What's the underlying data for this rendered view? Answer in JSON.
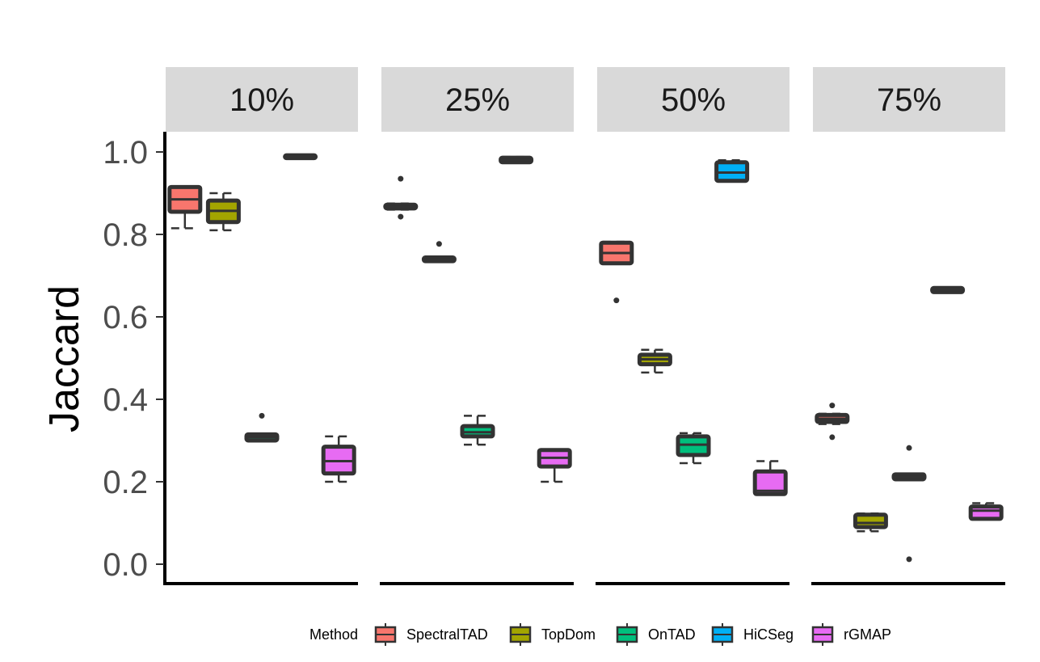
{
  "chart_data": {
    "type": "boxplot",
    "ylabel": "Jaccard",
    "xlabel": "",
    "ylim": [
      0,
      1
    ],
    "yticks": [
      "0.0",
      "0.2",
      "0.4",
      "0.6",
      "0.8",
      "1.0"
    ],
    "grid": false,
    "legend": {
      "title": "Method",
      "position": "bottom",
      "entries": [
        "SpectralTAD",
        "TopDom",
        "OnTAD",
        "HiCSeg",
        "rGMAP"
      ]
    },
    "colors": {
      "SpectralTAD": "#F8766D",
      "TopDom": "#A3A500",
      "OnTAD": "#00BF7D",
      "HiCSeg": "#00B0F6",
      "rGMAP": "#E76BF3",
      "outline": "#333333",
      "strip": "#D9D9D9"
    },
    "panels": [
      {
        "label": "10%",
        "boxes": [
          {
            "method": "SpectralTAD",
            "q1": 0.855,
            "median": 0.885,
            "q3": 0.915,
            "wmin": 0.815,
            "wmax": 0.915,
            "outliers": []
          },
          {
            "method": "TopDom",
            "q1": 0.83,
            "median": 0.857,
            "q3": 0.882,
            "wmin": 0.81,
            "wmax": 0.9,
            "outliers": []
          },
          {
            "method": "OnTAD",
            "q1": 0.3,
            "median": 0.308,
            "q3": 0.315,
            "wmin": 0.298,
            "wmax": 0.315,
            "outliers": [
              0.36
            ]
          },
          {
            "method": "HiCSeg",
            "q1": 0.985,
            "median": 0.988,
            "q3": 0.992,
            "wmin": 0.985,
            "wmax": 0.992,
            "outliers": []
          },
          {
            "method": "rGMAP",
            "q1": 0.22,
            "median": 0.25,
            "q3": 0.285,
            "wmin": 0.2,
            "wmax": 0.31,
            "outliers": []
          }
        ]
      },
      {
        "label": "25%",
        "boxes": [
          {
            "method": "SpectralTAD",
            "q1": 0.863,
            "median": 0.867,
            "q3": 0.872,
            "wmin": 0.86,
            "wmax": 0.875,
            "outliers": [
              0.935,
              0.843
            ]
          },
          {
            "method": "TopDom",
            "q1": 0.735,
            "median": 0.739,
            "q3": 0.744,
            "wmin": 0.733,
            "wmax": 0.746,
            "outliers": [
              0.777
            ]
          },
          {
            "method": "OnTAD",
            "q1": 0.31,
            "median": 0.32,
            "q3": 0.335,
            "wmin": 0.29,
            "wmax": 0.36,
            "outliers": []
          },
          {
            "method": "HiCSeg",
            "q1": 0.975,
            "median": 0.98,
            "q3": 0.986,
            "wmin": 0.975,
            "wmax": 0.988,
            "outliers": []
          },
          {
            "method": "rGMAP",
            "q1": 0.237,
            "median": 0.258,
            "q3": 0.277,
            "wmin": 0.2,
            "wmax": 0.277,
            "outliers": []
          }
        ]
      },
      {
        "label": "50%",
        "boxes": [
          {
            "method": "SpectralTAD",
            "q1": 0.73,
            "median": 0.755,
            "q3": 0.78,
            "wmin": 0.73,
            "wmax": 0.782,
            "outliers": [
              0.64
            ]
          },
          {
            "method": "TopDom",
            "q1": 0.485,
            "median": 0.497,
            "q3": 0.508,
            "wmin": 0.465,
            "wmax": 0.52,
            "outliers": []
          },
          {
            "method": "OnTAD",
            "q1": 0.265,
            "median": 0.29,
            "q3": 0.31,
            "wmin": 0.245,
            "wmax": 0.318,
            "outliers": []
          },
          {
            "method": "HiCSeg",
            "q1": 0.93,
            "median": 0.95,
            "q3": 0.975,
            "wmin": 0.93,
            "wmax": 0.98,
            "outliers": []
          },
          {
            "method": "rGMAP",
            "q1": 0.17,
            "median": 0.178,
            "q3": 0.225,
            "wmin": 0.17,
            "wmax": 0.25,
            "outliers": []
          }
        ]
      },
      {
        "label": "75%",
        "boxes": [
          {
            "method": "SpectralTAD",
            "q1": 0.345,
            "median": 0.353,
            "q3": 0.362,
            "wmin": 0.34,
            "wmax": 0.365,
            "outliers": [
              0.385,
              0.308
            ]
          },
          {
            "method": "TopDom",
            "q1": 0.09,
            "median": 0.1,
            "q3": 0.12,
            "wmin": 0.08,
            "wmax": 0.123,
            "outliers": []
          },
          {
            "method": "OnTAD",
            "q1": 0.206,
            "median": 0.212,
            "q3": 0.218,
            "wmin": 0.205,
            "wmax": 0.22,
            "outliers": [
              0.282,
              0.012
            ]
          },
          {
            "method": "HiCSeg",
            "q1": 0.66,
            "median": 0.665,
            "q3": 0.67,
            "wmin": 0.66,
            "wmax": 0.67,
            "outliers": []
          },
          {
            "method": "rGMAP",
            "q1": 0.11,
            "median": 0.13,
            "q3": 0.14,
            "wmin": 0.11,
            "wmax": 0.148,
            "outliers": []
          }
        ]
      }
    ]
  }
}
